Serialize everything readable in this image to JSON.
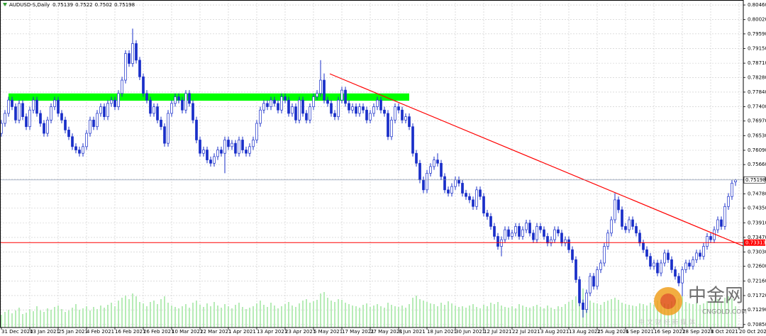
{
  "chart_data": {
    "type": "candlestick",
    "title": "AUDUSD-S,Daily",
    "grid": true,
    "xlim": [
      -0.4,
      209.2
    ],
    "xticks": [
      {
        "value": 0,
        "label": "31 Dec 2020"
      },
      {
        "value": 8,
        "label": "13 Jan 2021"
      },
      {
        "value": 16,
        "label": "25 Jan 2021"
      },
      {
        "value": 24,
        "label": "4 Feb 2021"
      },
      {
        "value": 32,
        "label": "16 Feb 2021"
      },
      {
        "value": 40,
        "label": "26 Feb 2021"
      },
      {
        "value": 48,
        "label": "10 Mar 2021"
      },
      {
        "value": 56,
        "label": "22 Mar 2021"
      },
      {
        "value": 64,
        "label": "1 Apr 2021"
      },
      {
        "value": 72,
        "label": "13 Apr 2021"
      },
      {
        "value": 80,
        "label": "23 Apr 2021"
      },
      {
        "value": 88,
        "label": "5 May 2021"
      },
      {
        "value": 96,
        "label": "17 May 2021"
      },
      {
        "value": 104,
        "label": "27 May 2021"
      },
      {
        "value": 112,
        "label": "8 Jun 2021"
      },
      {
        "value": 120,
        "label": "18 Jun 2021"
      },
      {
        "value": 128,
        "label": "30 Jun 2021"
      },
      {
        "value": 136,
        "label": "12 Jul 2021"
      },
      {
        "value": 144,
        "label": "22 Jul 2021"
      },
      {
        "value": 152,
        "label": "3 Aug 2021"
      },
      {
        "value": 160,
        "label": "13 Aug 2021"
      },
      {
        "value": 168,
        "label": "25 Aug 2021"
      },
      {
        "value": 176,
        "label": "6 Sep 2021"
      },
      {
        "value": 184,
        "label": "16 Sep 2021"
      },
      {
        "value": 192,
        "label": "28 Sep 2021"
      },
      {
        "value": 200,
        "label": "8 Oct 2021"
      },
      {
        "value": 208,
        "label": "20 Oct 2021"
      }
    ],
    "ylim": [
      0.7076,
      0.8061
    ],
    "yticks": [
      {
        "value": 0.8046,
        "label": "0.80460"
      },
      {
        "value": 0.8002,
        "label": "0.80020"
      },
      {
        "value": 0.7959,
        "label": "0.79590"
      },
      {
        "value": 0.7915,
        "label": "0.79150"
      },
      {
        "value": 0.7871,
        "label": "0.78710"
      },
      {
        "value": 0.7828,
        "label": "0.78280"
      },
      {
        "value": 0.7784,
        "label": "0.77840"
      },
      {
        "value": 0.774,
        "label": "0.77400"
      },
      {
        "value": 0.7697,
        "label": "0.76970"
      },
      {
        "value": 0.7653,
        "label": "0.76530"
      },
      {
        "value": 0.7609,
        "label": "0.76090"
      },
      {
        "value": 0.7566,
        "label": "0.75660"
      },
      {
        "value": 0.7522,
        "label": "0.75220"
      },
      {
        "value": 0.7478,
        "label": "0.74780"
      },
      {
        "value": 0.7435,
        "label": "0.74350"
      },
      {
        "value": 0.7391,
        "label": "0.73910"
      },
      {
        "value": 0.7347,
        "label": "0.73470"
      },
      {
        "value": 0.7303,
        "label": "0.73030"
      },
      {
        "value": 0.726,
        "label": "0.72600"
      },
      {
        "value": 0.7216,
        "label": "0.72160"
      },
      {
        "value": 0.7172,
        "label": "0.71720"
      },
      {
        "value": 0.7129,
        "label": "0.71290"
      },
      {
        "value": 0.7085,
        "label": "0.70850"
      }
    ],
    "open": [
      0.766,
      0.769,
      0.772,
      0.776,
      0.774,
      0.77,
      0.775,
      0.771,
      0.768,
      0.773,
      0.776,
      0.772,
      0.769,
      0.766,
      0.77,
      0.774,
      0.776,
      0.772,
      0.77,
      0.767,
      0.765,
      0.762,
      0.761,
      0.76,
      0.762,
      0.766,
      0.77,
      0.768,
      0.772,
      0.774,
      0.771,
      0.775,
      0.776,
      0.774,
      0.778,
      0.782,
      0.79,
      0.787,
      0.793,
      0.788,
      0.783,
      0.778,
      0.776,
      0.772,
      0.774,
      0.77,
      0.768,
      0.763,
      0.772,
      0.775,
      0.777,
      0.776,
      0.773,
      0.778,
      0.775,
      0.77,
      0.764,
      0.76,
      0.761,
      0.758,
      0.757,
      0.759,
      0.761,
      0.76,
      0.764,
      0.762,
      0.763,
      0.76,
      0.764,
      0.761,
      0.76,
      0.762,
      0.764,
      0.769,
      0.773,
      0.775,
      0.774,
      0.776,
      0.775,
      0.773,
      0.777,
      0.776,
      0.772,
      0.774,
      0.77,
      0.776,
      0.772,
      0.77,
      0.774,
      0.777,
      0.778,
      0.782,
      0.776,
      0.775,
      0.772,
      0.771,
      0.776,
      0.779,
      0.775,
      0.773,
      0.774,
      0.772,
      0.774,
      0.773,
      0.77,
      0.772,
      0.774,
      0.776,
      0.773,
      0.772,
      0.765,
      0.77,
      0.774,
      0.773,
      0.77,
      0.771,
      0.768,
      0.76,
      0.757,
      0.752,
      0.749,
      0.754,
      0.756,
      0.758,
      0.757,
      0.753,
      0.749,
      0.748,
      0.75,
      0.752,
      0.751,
      0.748,
      0.747,
      0.746,
      0.744,
      0.749,
      0.747,
      0.742,
      0.741,
      0.738,
      0.735,
      0.732,
      0.734,
      0.737,
      0.735,
      0.736,
      0.738,
      0.735,
      0.737,
      0.739,
      0.736,
      0.734,
      0.738,
      0.737,
      0.735,
      0.733,
      0.734,
      0.737,
      0.736,
      0.733,
      0.734,
      0.731,
      0.728,
      0.722,
      0.715,
      0.713,
      0.718,
      0.723,
      0.72,
      0.725,
      0.727,
      0.732,
      0.736,
      0.74,
      0.746,
      0.743,
      0.738,
      0.737,
      0.74,
      0.738,
      0.736,
      0.733,
      0.731,
      0.729,
      0.726,
      0.727,
      0.724,
      0.727,
      0.73,
      0.728,
      0.725,
      0.723,
      0.721,
      0.725,
      0.727,
      0.726,
      0.728,
      0.73,
      0.729,
      0.732,
      0.735,
      0.734,
      0.737,
      0.74,
      0.738,
      0.744,
      0.747,
      0.75139
    ],
    "high": [
      0.77,
      0.773,
      0.777,
      0.777,
      0.775,
      0.776,
      0.776,
      0.772,
      0.774,
      0.777,
      0.777,
      0.773,
      0.77,
      0.771,
      0.775,
      0.777,
      0.777,
      0.773,
      0.771,
      0.768,
      0.766,
      0.763,
      0.762,
      0.763,
      0.767,
      0.771,
      0.771,
      0.773,
      0.775,
      0.775,
      0.776,
      0.777,
      0.777,
      0.779,
      0.783,
      0.791,
      0.791,
      0.7975,
      0.794,
      0.789,
      0.784,
      0.779,
      0.777,
      0.775,
      0.775,
      0.771,
      0.769,
      0.773,
      0.776,
      0.778,
      0.778,
      0.777,
      0.779,
      0.779,
      0.776,
      0.771,
      0.765,
      0.762,
      0.762,
      0.759,
      0.76,
      0.762,
      0.762,
      0.765,
      0.765,
      0.764,
      0.764,
      0.765,
      0.765,
      0.762,
      0.763,
      0.765,
      0.77,
      0.774,
      0.776,
      0.776,
      0.777,
      0.777,
      0.776,
      0.778,
      0.778,
      0.777,
      0.775,
      0.775,
      0.777,
      0.777,
      0.773,
      0.775,
      0.778,
      0.779,
      0.788,
      0.784,
      0.777,
      0.776,
      0.773,
      0.777,
      0.78,
      0.78,
      0.776,
      0.775,
      0.775,
      0.775,
      0.775,
      0.774,
      0.773,
      0.775,
      0.777,
      0.777,
      0.774,
      0.773,
      0.771,
      0.775,
      0.775,
      0.774,
      0.772,
      0.772,
      0.769,
      0.761,
      0.758,
      0.753,
      0.755,
      0.757,
      0.759,
      0.76,
      0.758,
      0.754,
      0.75,
      0.751,
      0.753,
      0.753,
      0.752,
      0.749,
      0.748,
      0.747,
      0.75,
      0.75,
      0.748,
      0.743,
      0.742,
      0.739,
      0.736,
      0.735,
      0.738,
      0.738,
      0.737,
      0.739,
      0.739,
      0.738,
      0.74,
      0.74,
      0.737,
      0.739,
      0.739,
      0.738,
      0.736,
      0.735,
      0.738,
      0.738,
      0.737,
      0.735,
      0.735,
      0.732,
      0.729,
      0.723,
      0.716,
      0.719,
      0.724,
      0.724,
      0.726,
      0.728,
      0.733,
      0.737,
      0.741,
      0.748,
      0.747,
      0.744,
      0.739,
      0.741,
      0.741,
      0.739,
      0.737,
      0.734,
      0.732,
      0.73,
      0.728,
      0.728,
      0.728,
      0.731,
      0.731,
      0.729,
      0.726,
      0.724,
      0.726,
      0.728,
      0.728,
      0.729,
      0.731,
      0.731,
      0.733,
      0.736,
      0.736,
      0.738,
      0.741,
      0.741,
      0.745,
      0.748,
      0.752,
      0.7522
    ],
    "low": [
      0.765,
      0.768,
      0.771,
      0.773,
      0.769,
      0.769,
      0.77,
      0.767,
      0.767,
      0.772,
      0.771,
      0.768,
      0.765,
      0.765,
      0.769,
      0.773,
      0.771,
      0.769,
      0.766,
      0.764,
      0.761,
      0.76,
      0.759,
      0.759,
      0.761,
      0.765,
      0.767,
      0.767,
      0.771,
      0.77,
      0.77,
      0.774,
      0.773,
      0.773,
      0.777,
      0.781,
      0.786,
      0.786,
      0.787,
      0.782,
      0.777,
      0.775,
      0.771,
      0.771,
      0.769,
      0.767,
      0.762,
      0.762,
      0.771,
      0.774,
      0.775,
      0.772,
      0.772,
      0.774,
      0.769,
      0.763,
      0.759,
      0.759,
      0.757,
      0.756,
      0.756,
      0.758,
      0.759,
      0.754,
      0.761,
      0.761,
      0.759,
      0.759,
      0.76,
      0.759,
      0.759,
      0.761,
      0.763,
      0.768,
      0.772,
      0.773,
      0.773,
      0.774,
      0.772,
      0.772,
      0.775,
      0.771,
      0.771,
      0.769,
      0.769,
      0.771,
      0.769,
      0.769,
      0.773,
      0.776,
      0.777,
      0.775,
      0.774,
      0.771,
      0.77,
      0.77,
      0.775,
      0.774,
      0.772,
      0.772,
      0.771,
      0.771,
      0.772,
      0.769,
      0.769,
      0.771,
      0.773,
      0.772,
      0.771,
      0.764,
      0.764,
      0.769,
      0.772,
      0.769,
      0.769,
      0.767,
      0.759,
      0.756,
      0.751,
      0.748,
      0.748,
      0.753,
      0.755,
      0.756,
      0.752,
      0.748,
      0.747,
      0.747,
      0.749,
      0.75,
      0.747,
      0.746,
      0.745,
      0.743,
      0.743,
      0.746,
      0.741,
      0.74,
      0.737,
      0.734,
      0.731,
      0.729,
      0.733,
      0.734,
      0.734,
      0.735,
      0.734,
      0.734,
      0.736,
      0.735,
      0.733,
      0.733,
      0.736,
      0.734,
      0.732,
      0.732,
      0.733,
      0.735,
      0.732,
      0.732,
      0.73,
      0.727,
      0.721,
      0.714,
      0.7106,
      0.712,
      0.717,
      0.719,
      0.719,
      0.724,
      0.726,
      0.731,
      0.735,
      0.739,
      0.742,
      0.737,
      0.736,
      0.736,
      0.737,
      0.735,
      0.732,
      0.73,
      0.728,
      0.725,
      0.725,
      0.723,
      0.723,
      0.726,
      0.727,
      0.724,
      0.722,
      0.72,
      0.717,
      0.724,
      0.725,
      0.725,
      0.727,
      0.728,
      0.728,
      0.731,
      0.733,
      0.733,
      0.736,
      0.737,
      0.737,
      0.743,
      0.746,
      0.7502
    ],
    "close": [
      0.769,
      0.772,
      0.776,
      0.774,
      0.77,
      0.775,
      0.771,
      0.768,
      0.773,
      0.776,
      0.772,
      0.769,
      0.766,
      0.77,
      0.774,
      0.776,
      0.772,
      0.77,
      0.767,
      0.765,
      0.762,
      0.761,
      0.76,
      0.762,
      0.766,
      0.77,
      0.768,
      0.772,
      0.774,
      0.771,
      0.775,
      0.776,
      0.774,
      0.778,
      0.782,
      0.79,
      0.787,
      0.793,
      0.788,
      0.783,
      0.778,
      0.776,
      0.772,
      0.774,
      0.77,
      0.768,
      0.763,
      0.772,
      0.775,
      0.777,
      0.776,
      0.773,
      0.778,
      0.775,
      0.77,
      0.764,
      0.76,
      0.761,
      0.758,
      0.757,
      0.759,
      0.761,
      0.76,
      0.764,
      0.762,
      0.763,
      0.76,
      0.764,
      0.761,
      0.76,
      0.762,
      0.764,
      0.769,
      0.773,
      0.775,
      0.774,
      0.776,
      0.775,
      0.773,
      0.777,
      0.776,
      0.772,
      0.774,
      0.77,
      0.776,
      0.772,
      0.77,
      0.774,
      0.777,
      0.778,
      0.782,
      0.776,
      0.775,
      0.772,
      0.771,
      0.776,
      0.779,
      0.775,
      0.773,
      0.774,
      0.772,
      0.774,
      0.773,
      0.77,
      0.772,
      0.774,
      0.776,
      0.773,
      0.772,
      0.765,
      0.77,
      0.774,
      0.773,
      0.77,
      0.771,
      0.768,
      0.76,
      0.757,
      0.752,
      0.749,
      0.754,
      0.756,
      0.758,
      0.757,
      0.753,
      0.749,
      0.748,
      0.75,
      0.752,
      0.751,
      0.748,
      0.747,
      0.746,
      0.744,
      0.749,
      0.747,
      0.742,
      0.741,
      0.738,
      0.735,
      0.732,
      0.734,
      0.737,
      0.735,
      0.736,
      0.738,
      0.735,
      0.737,
      0.739,
      0.736,
      0.734,
      0.738,
      0.737,
      0.735,
      0.733,
      0.734,
      0.737,
      0.736,
      0.733,
      0.734,
      0.731,
      0.728,
      0.722,
      0.715,
      0.713,
      0.718,
      0.723,
      0.72,
      0.725,
      0.727,
      0.732,
      0.736,
      0.74,
      0.746,
      0.743,
      0.738,
      0.737,
      0.74,
      0.738,
      0.736,
      0.733,
      0.731,
      0.729,
      0.726,
      0.727,
      0.724,
      0.727,
      0.73,
      0.728,
      0.725,
      0.723,
      0.721,
      0.725,
      0.727,
      0.726,
      0.728,
      0.73,
      0.729,
      0.732,
      0.735,
      0.734,
      0.737,
      0.74,
      0.738,
      0.744,
      0.747,
      0.751,
      0.75198
    ],
    "volume": [
      18,
      22,
      25,
      20,
      24,
      28,
      19,
      21,
      26,
      23,
      30,
      24,
      22,
      27,
      25,
      29,
      31,
      26,
      22,
      24,
      28,
      33,
      25,
      27,
      30,
      24,
      29,
      26,
      31,
      28,
      32,
      35,
      30,
      38,
      42,
      45,
      40,
      48,
      44,
      36,
      34,
      30,
      36,
      38,
      33,
      40,
      44,
      35,
      31,
      29,
      27,
      30,
      33,
      28,
      35,
      38,
      32,
      29,
      34,
      30,
      36,
      31,
      28,
      33,
      30,
      27,
      32,
      35,
      29,
      26,
      28,
      30,
      34,
      38,
      32,
      29,
      35,
      31,
      27,
      30,
      33,
      36,
      31,
      29,
      34,
      38,
      40,
      35,
      37,
      39,
      48,
      50,
      42,
      38,
      36,
      40,
      39,
      35,
      33,
      31,
      30,
      28,
      32,
      34,
      29,
      31,
      33,
      30,
      28,
      35,
      32,
      30,
      29,
      31,
      28,
      33,
      42,
      45,
      40,
      38,
      36,
      34,
      33,
      30,
      35,
      32,
      37,
      34,
      31,
      29,
      30,
      28,
      31,
      33,
      29,
      27,
      32,
      30,
      35,
      33,
      36,
      31,
      29,
      28,
      30,
      27,
      33,
      31,
      29,
      28,
      30,
      32,
      29,
      27,
      31,
      28,
      26,
      30,
      29,
      33,
      36,
      39,
      44,
      50,
      55,
      42,
      38,
      35,
      34,
      32,
      36,
      38,
      40,
      42,
      39,
      35,
      33,
      32,
      31,
      30,
      34,
      33,
      31,
      35,
      32,
      38,
      36,
      34,
      33,
      37,
      39,
      41,
      44,
      36,
      34,
      33,
      35,
      32,
      34,
      37,
      36,
      38,
      40,
      36,
      42,
      44,
      41,
      30
    ],
    "volume_lim": [
      0,
      100
    ],
    "bull_color": "#ffffff",
    "bear_color": "#1a2fc9",
    "wick_color": "#1a2fc9",
    "volume_color": "#b7ecb7",
    "trendline": {
      "x": [
        92.6,
        209.2
      ],
      "y": [
        0.7839,
        0.7321
      ],
      "color": "#ff0000"
    },
    "zone": {
      "x": [
        2,
        115
      ],
      "y": [
        0.7758,
        0.778
      ],
      "color": "#00ff00"
    },
    "hline": {
      "value": 0.73313,
      "color": "#ff0000"
    },
    "price_line_color": "#7a8aa8"
  },
  "watermark": {
    "name": "中金网",
    "site": "CNGOLD.COM",
    "slogan": "中 文 财 经 新 媒 体"
  }
}
